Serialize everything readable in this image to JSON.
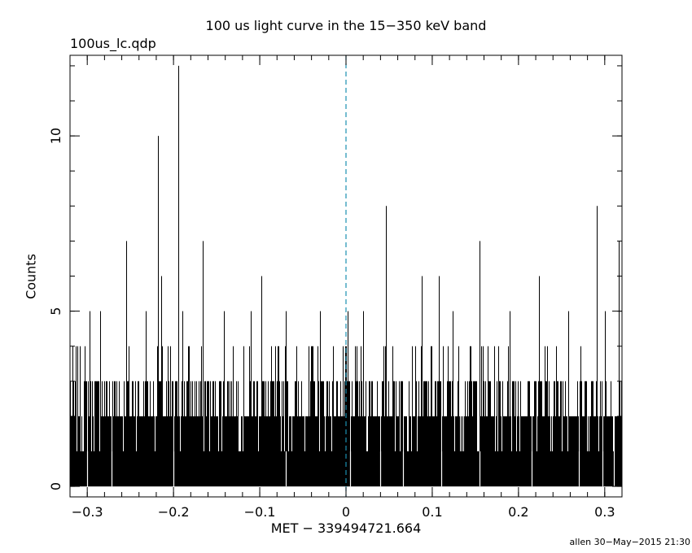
{
  "chart_data": {
    "type": "bar",
    "title": "100 us light curve in the 15−350 keV band",
    "subtitle": "100us_lc.qdp",
    "xlabel": "MET − 339494721.664",
    "ylabel": "Counts",
    "xlim": [
      -0.32,
      0.32
    ],
    "ylim": [
      -0.3,
      12.3
    ],
    "x_ticks": [
      -0.3,
      -0.2,
      -0.1,
      0,
      0.1,
      0.2,
      0.3
    ],
    "x_tick_labels": [
      "−0.3",
      "−0.2",
      "−0.1",
      "0",
      "0.1",
      "0.2",
      "0.3"
    ],
    "y_ticks": [
      0,
      5,
      10
    ],
    "y_tick_labels": [
      "0",
      "5",
      "10"
    ],
    "bin_width": 0.0001,
    "reference_line": {
      "x": 0,
      "style": "dashed",
      "color": "#1a8fb0"
    },
    "grid": false,
    "background_level": "counts mostly 1–3 per bin",
    "peaks": [
      {
        "x": -0.297,
        "y": 5
      },
      {
        "x": -0.285,
        "y": 5
      },
      {
        "x": -0.255,
        "y": 7
      },
      {
        "x": -0.232,
        "y": 5
      },
      {
        "x": -0.218,
        "y": 10
      },
      {
        "x": -0.214,
        "y": 6
      },
      {
        "x": -0.194,
        "y": 12
      },
      {
        "x": -0.19,
        "y": 5
      },
      {
        "x": -0.166,
        "y": 7
      },
      {
        "x": -0.142,
        "y": 5
      },
      {
        "x": -0.11,
        "y": 5
      },
      {
        "x": -0.098,
        "y": 6
      },
      {
        "x": -0.07,
        "y": 5
      },
      {
        "x": -0.03,
        "y": 5
      },
      {
        "x": 0.002,
        "y": 5
      },
      {
        "x": 0.02,
        "y": 5
      },
      {
        "x": 0.046,
        "y": 8
      },
      {
        "x": 0.088,
        "y": 6
      },
      {
        "x": 0.108,
        "y": 6
      },
      {
        "x": 0.124,
        "y": 5
      },
      {
        "x": 0.155,
        "y": 7
      },
      {
        "x": 0.19,
        "y": 5
      },
      {
        "x": 0.224,
        "y": 6
      },
      {
        "x": 0.258,
        "y": 5
      },
      {
        "x": 0.291,
        "y": 8
      },
      {
        "x": 0.3,
        "y": 5
      },
      {
        "x": 0.316,
        "y": 7
      }
    ],
    "dips_to_zero": [
      -0.3,
      -0.272,
      -0.2,
      -0.07,
      0.005,
      0.04,
      0.066,
      0.11,
      0.155,
      0.215,
      0.27,
      0.297,
      0.311
    ]
  },
  "footer": "allen 30−May−2015 21:30"
}
